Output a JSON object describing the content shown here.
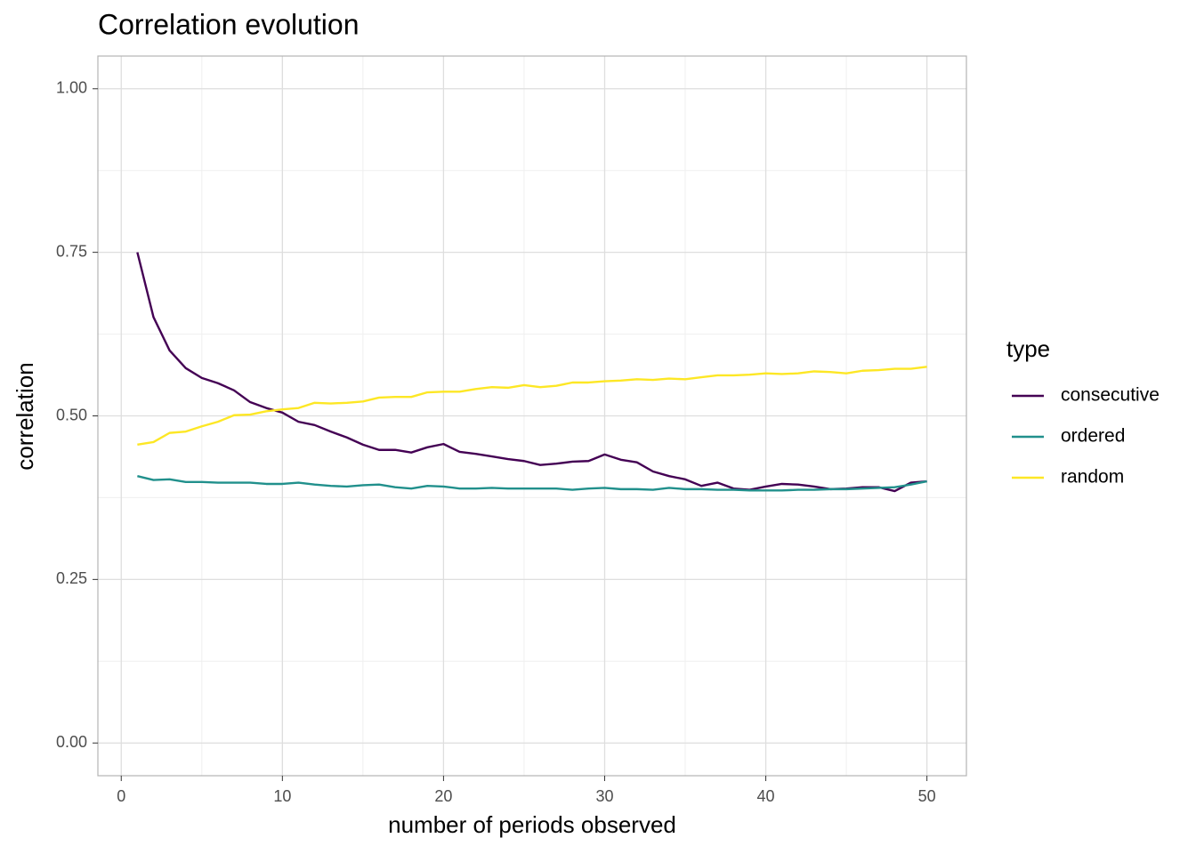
{
  "chart_data": {
    "type": "line",
    "title": "Correlation evolution",
    "x_label": "number of periods observed",
    "y_label": "correlation",
    "legend_title": "type",
    "legend": "right",
    "x": [
      1,
      2,
      3,
      4,
      5,
      6,
      7,
      8,
      9,
      10,
      11,
      12,
      13,
      14,
      15,
      16,
      17,
      18,
      19,
      20,
      21,
      22,
      23,
      24,
      25,
      26,
      27,
      28,
      29,
      30,
      31,
      32,
      33,
      34,
      35,
      36,
      37,
      38,
      39,
      40,
      41,
      42,
      43,
      44,
      45,
      46,
      47,
      48,
      49,
      50
    ],
    "series": [
      {
        "name": "consecutive",
        "color": "#440154",
        "values": [
          0.75,
          0.651,
          0.6,
          0.573,
          0.558,
          0.55,
          0.539,
          0.521,
          0.512,
          0.505,
          0.491,
          0.486,
          0.476,
          0.467,
          0.456,
          0.448,
          0.448,
          0.444,
          0.452,
          0.457,
          0.445,
          0.442,
          0.438,
          0.434,
          0.431,
          0.425,
          0.427,
          0.43,
          0.431,
          0.441,
          0.433,
          0.429,
          0.415,
          0.408,
          0.403,
          0.393,
          0.398,
          0.389,
          0.387,
          0.392,
          0.396,
          0.395,
          0.392,
          0.388,
          0.389,
          0.391,
          0.391,
          0.385,
          0.398,
          0.4
        ]
      },
      {
        "name": "ordered",
        "color": "#21908C",
        "values": [
          0.408,
          0.402,
          0.403,
          0.399,
          0.399,
          0.398,
          0.398,
          0.398,
          0.396,
          0.396,
          0.398,
          0.395,
          0.393,
          0.392,
          0.394,
          0.395,
          0.391,
          0.389,
          0.393,
          0.392,
          0.389,
          0.389,
          0.39,
          0.389,
          0.389,
          0.389,
          0.389,
          0.387,
          0.389,
          0.39,
          0.388,
          0.388,
          0.387,
          0.39,
          0.388,
          0.388,
          0.387,
          0.387,
          0.386,
          0.386,
          0.386,
          0.387,
          0.387,
          0.388,
          0.388,
          0.389,
          0.39,
          0.391,
          0.395,
          0.4
        ]
      },
      {
        "name": "random",
        "color": "#FDE725",
        "values": [
          0.456,
          0.46,
          0.474,
          0.476,
          0.484,
          0.491,
          0.501,
          0.502,
          0.507,
          0.51,
          0.512,
          0.52,
          0.519,
          0.52,
          0.522,
          0.528,
          0.529,
          0.529,
          0.536,
          0.537,
          0.537,
          0.541,
          0.544,
          0.543,
          0.547,
          0.544,
          0.546,
          0.551,
          0.551,
          0.553,
          0.554,
          0.556,
          0.555,
          0.557,
          0.556,
          0.559,
          0.562,
          0.562,
          0.563,
          0.565,
          0.564,
          0.565,
          0.568,
          0.567,
          0.565,
          0.569,
          0.57,
          0.572,
          0.572,
          0.575
        ]
      }
    ],
    "xlim": [
      -1.45,
      52.45
    ],
    "xticks": [
      0,
      10,
      20,
      30,
      40,
      50
    ],
    "xminor": [
      5,
      15,
      25,
      35,
      45
    ],
    "ylim": [
      -0.05,
      1.05
    ],
    "yticks": [
      {
        "value": 0,
        "label": "0.00"
      },
      0.25,
      {
        "value": 0.5,
        "label": "0.50"
      },
      0.75,
      {
        "value": 1,
        "label": "1.00"
      }
    ],
    "yminor": [
      0.125,
      0.375,
      0.625,
      0.875
    ],
    "grid": true
  }
}
